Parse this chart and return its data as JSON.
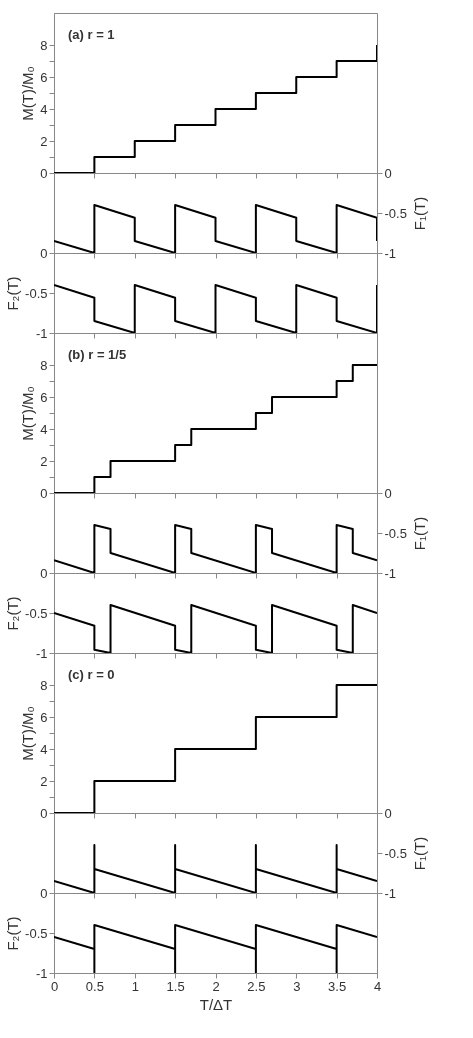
{
  "chart_data": [
    {
      "type": "step",
      "ylabel": "M(T)/M₀",
      "annotations": [
        "(a) r = 1"
      ],
      "x": [
        0,
        0.5,
        1,
        1.5,
        2,
        2.5,
        3,
        3.5,
        4
      ],
      "xlim": [
        0,
        4
      ],
      "xticks": [
        0,
        0.5,
        1,
        1.5,
        2,
        2.5,
        3,
        3.5,
        4
      ],
      "ylim": [
        0,
        10
      ],
      "yticks": [
        0,
        {
          "value": 1,
          "label": null
        },
        2,
        {
          "value": 3,
          "label": null
        },
        4,
        {
          "value": 5,
          "label": null
        },
        6,
        {
          "value": 7,
          "label": null
        },
        8
      ],
      "tick_labels": "y",
      "series": [
        {
          "color": "#000000",
          "values": [
            0,
            1,
            2,
            3,
            4,
            5,
            6,
            7,
            8
          ]
        }
      ]
    },
    {
      "type": "line",
      "y2label": "F₁(T)",
      "x": [
        0,
        0.5,
        0.5,
        1,
        1,
        1.5,
        1.5,
        2,
        2,
        2.5,
        2.5,
        3,
        3,
        3.5,
        3.5,
        4,
        4
      ],
      "xlim": [
        0,
        4
      ],
      "xticks": [
        0,
        0.5,
        1,
        1.5,
        2,
        2.5,
        3,
        3.5,
        4
      ],
      "y2lim": [
        -1,
        0
      ],
      "y2ticks": [
        0,
        -0.5,
        -1
      ],
      "tick_labels": "y",
      "series": [
        {
          "color": "#000000",
          "axis": "y2",
          "values": [
            -0.85,
            -1,
            -0.4,
            -0.56,
            -0.85,
            -1,
            -0.4,
            -0.56,
            -0.85,
            -1,
            -0.4,
            -0.56,
            -0.85,
            -1,
            -0.4,
            -0.56,
            -0.85
          ]
        }
      ]
    },
    {
      "type": "line",
      "ylabel": "F₂(T)",
      "x": [
        0,
        0.5,
        0.5,
        1,
        1,
        1.5,
        1.5,
        2,
        2,
        2.5,
        2.5,
        3,
        3,
        3.5,
        3.5,
        4,
        4
      ],
      "xlim": [
        0,
        4
      ],
      "xticks": [
        0,
        0.5,
        1,
        1.5,
        2,
        2.5,
        3,
        3.5,
        4
      ],
      "ylim": [
        -1,
        0
      ],
      "yticks": [
        0,
        -0.5,
        -1
      ],
      "tick_labels": "y",
      "series": [
        {
          "color": "#000000",
          "values": [
            -0.4,
            -0.56,
            -0.85,
            -1,
            -0.4,
            -0.56,
            -0.85,
            -1,
            -0.4,
            -0.56,
            -0.85,
            -1,
            -0.4,
            -0.56,
            -0.85,
            -1,
            -0.4
          ]
        }
      ]
    },
    {
      "type": "step",
      "ylabel": "M(T)/M₀",
      "annotations": [
        "(b) r = 1/5"
      ],
      "x": [
        0,
        0.5,
        0.7,
        1.5,
        1.7,
        2.5,
        2.7,
        3.5,
        3.7,
        4
      ],
      "xlim": [
        0,
        4
      ],
      "xticks": [
        0,
        0.5,
        1,
        1.5,
        2,
        2.5,
        3,
        3.5,
        4
      ],
      "ylim": [
        0,
        10
      ],
      "yticks": [
        0,
        {
          "value": 1,
          "label": null
        },
        2,
        {
          "value": 3,
          "label": null
        },
        4,
        {
          "value": 5,
          "label": null
        },
        6,
        {
          "value": 7,
          "label": null
        },
        8
      ],
      "tick_labels": "y",
      "series": [
        {
          "color": "#000000",
          "values": [
            0,
            1,
            2,
            3,
            4,
            5,
            6,
            7,
            8,
            8
          ]
        }
      ]
    },
    {
      "type": "line",
      "y2label": "F₁(T)",
      "x": [
        0,
        0.5,
        0.5,
        0.7,
        0.7,
        1.5,
        1.5,
        1.7,
        1.7,
        2.5,
        2.5,
        2.7,
        2.7,
        3.5,
        3.5,
        3.7,
        3.7,
        4
      ],
      "xlim": [
        0,
        4
      ],
      "xticks": [
        0,
        0.5,
        1,
        1.5,
        2,
        2.5,
        3,
        3.5,
        4
      ],
      "y2lim": [
        -1,
        0
      ],
      "y2ticks": [
        0,
        -0.5,
        -1
      ],
      "tick_labels": "y",
      "series": [
        {
          "color": "#000000",
          "axis": "y2",
          "values": [
            -0.84,
            -1,
            -0.4,
            -0.45,
            -0.75,
            -1,
            -0.4,
            -0.45,
            -0.75,
            -1,
            -0.4,
            -0.45,
            -0.75,
            -1,
            -0.4,
            -0.45,
            -0.75,
            -0.84
          ]
        }
      ]
    },
    {
      "type": "line",
      "ylabel": "F₂(T)",
      "x": [
        0,
        0.5,
        0.5,
        0.7,
        0.7,
        1.5,
        1.5,
        1.7,
        1.7,
        2.5,
        2.5,
        2.7,
        2.7,
        3.5,
        3.5,
        3.7,
        3.7,
        4
      ],
      "xlim": [
        0,
        4
      ],
      "xticks": [
        0,
        0.5,
        1,
        1.5,
        2,
        2.5,
        3,
        3.5,
        4
      ],
      "ylim": [
        -1,
        0
      ],
      "yticks": [
        0,
        -0.5,
        -1
      ],
      "tick_labels": "y",
      "series": [
        {
          "color": "#000000",
          "values": [
            -0.5,
            -0.66,
            -0.96,
            -1,
            -0.4,
            -0.66,
            -0.96,
            -1,
            -0.4,
            -0.66,
            -0.96,
            -1,
            -0.4,
            -0.66,
            -0.96,
            -1,
            -0.4,
            -0.5
          ]
        }
      ]
    },
    {
      "type": "step",
      "ylabel": "M(T)/M₀",
      "annotations": [
        "(c) r = 0"
      ],
      "x": [
        0,
        0.5,
        1.5,
        2.5,
        3.5,
        4
      ],
      "xlim": [
        0,
        4
      ],
      "xticks": [
        0,
        0.5,
        1,
        1.5,
        2,
        2.5,
        3,
        3.5,
        4
      ],
      "ylim": [
        0,
        10
      ],
      "yticks": [
        0,
        {
          "value": 1,
          "label": null
        },
        2,
        {
          "value": 3,
          "label": null
        },
        4,
        {
          "value": 5,
          "label": null
        },
        6,
        {
          "value": 7,
          "label": null
        },
        8
      ],
      "tick_labels": "y",
      "series": [
        {
          "color": "#000000",
          "values": [
            0,
            2,
            4,
            6,
            8,
            8
          ]
        }
      ]
    },
    {
      "type": "line",
      "y2label": "F₁(T)",
      "x": [
        0,
        0.5,
        0.5,
        0.5,
        1.5,
        1.5,
        1.5,
        2.5,
        2.5,
        2.5,
        3.5,
        3.5,
        3.5,
        4
      ],
      "xlim": [
        0,
        4
      ],
      "xticks": [
        0,
        0.5,
        1,
        1.5,
        2,
        2.5,
        3,
        3.5,
        4
      ],
      "y2lim": [
        -1,
        0
      ],
      "y2ticks": [
        0,
        -0.5,
        -1
      ],
      "tick_labels": "y",
      "series": [
        {
          "color": "#000000",
          "axis": "y2",
          "values": [
            -0.85,
            -1,
            -0.4,
            -0.7,
            -1,
            -0.4,
            -0.7,
            -1,
            -0.4,
            -0.7,
            -1,
            -0.4,
            -0.7,
            -0.85
          ]
        }
      ]
    },
    {
      "type": "line",
      "ylabel": "F₂(T)",
      "xlabel": "T/ΔT",
      "x": [
        0,
        0.5,
        0.5,
        0.5,
        1.5,
        1.5,
        1.5,
        2.5,
        2.5,
        2.5,
        3.5,
        3.5,
        3.5,
        4
      ],
      "xlim": [
        0,
        4
      ],
      "xticks": [
        0,
        0.5,
        1,
        1.5,
        2,
        2.5,
        3,
        3.5,
        4
      ],
      "ylim": [
        -1,
        0
      ],
      "yticks": [
        0,
        -0.5,
        -1
      ],
      "series": [
        {
          "color": "#000000",
          "values": [
            -0.55,
            -0.7,
            -1,
            -0.4,
            -0.7,
            -1,
            -0.4,
            -0.7,
            -1,
            -0.4,
            -0.7,
            -1,
            -0.4,
            -0.55
          ]
        }
      ]
    }
  ]
}
